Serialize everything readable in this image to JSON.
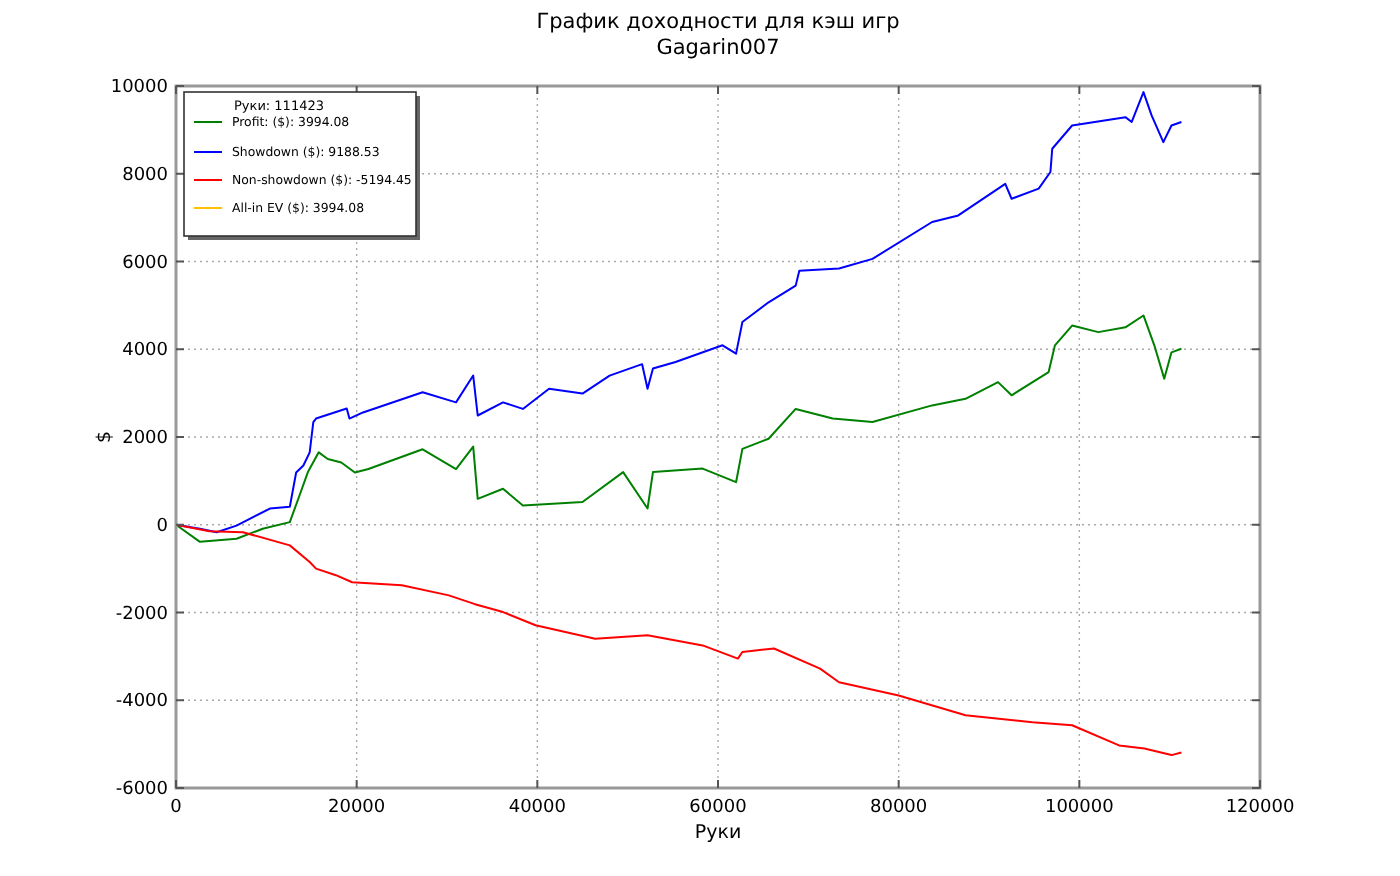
{
  "chart_data": {
    "type": "line",
    "title": "График доходности для кэш игр",
    "subtitle": "Gagarin007",
    "xlabel": "Руки",
    "ylabel": "$",
    "legend_title": "Руки: 111423",
    "xlim": [
      0,
      120000
    ],
    "xticks": [
      0,
      20000,
      40000,
      60000,
      80000,
      100000,
      120000
    ],
    "ylim": [
      -6000,
      10000
    ],
    "yticks": [
      -6000,
      -4000,
      -2000,
      0,
      2000,
      4000,
      6000,
      8000,
      10000
    ],
    "grid": true,
    "legend": "top left",
    "marker": "none",
    "line_style": "solid",
    "series": [
      {
        "name": "Profit: ($): 3994.08",
        "color": "#008000",
        "x": [
          0,
          2650,
          6700,
          9600,
          12600,
          13800,
          14600,
          15800,
          16800,
          18300,
          19800,
          21300,
          27300,
          31000,
          32900,
          33400,
          36200,
          38400,
          45000,
          49500,
          52200,
          52800,
          58300,
          62000,
          62700,
          65600,
          68600,
          72700,
          77100,
          83700,
          87400,
          91000,
          92500,
          96600,
          97300,
          99200,
          102100,
          105100,
          107100,
          108300,
          109400,
          110200,
          111300
        ],
        "values": [
          0,
          -390,
          -320,
          -90,
          60,
          740,
          1200,
          1650,
          1500,
          1420,
          1190,
          1270,
          1720,
          1270,
          1780,
          590,
          820,
          440,
          520,
          1200,
          370,
          1200,
          1280,
          970,
          1730,
          1960,
          2640,
          2420,
          2340,
          2720,
          2870,
          3250,
          2950,
          3480,
          4090,
          4540,
          4390,
          4500,
          4770,
          4090,
          3330,
          3930,
          4010
        ]
      },
      {
        "name": "Showdown ($): 9188.53",
        "color": "#0000ff",
        "x": [
          0,
          2650,
          4500,
          6700,
          10400,
          12600,
          13300,
          14100,
          14800,
          15200,
          15500,
          18900,
          19200,
          20700,
          27300,
          31000,
          32900,
          33400,
          36200,
          38400,
          41300,
          45000,
          48000,
          51600,
          52200,
          52800,
          55300,
          60500,
          62000,
          62700,
          65600,
          68600,
          69000,
          73400,
          77100,
          83700,
          86600,
          91800,
          92500,
          95500,
          96800,
          97000,
          99200,
          105100,
          105800,
          107100,
          108000,
          109300,
          110200,
          111300
        ],
        "values": [
          0,
          -90,
          -170,
          -20,
          370,
          410,
          1190,
          1350,
          1650,
          2340,
          2420,
          2650,
          2420,
          2560,
          3020,
          2790,
          3400,
          2490,
          2790,
          2640,
          3100,
          2990,
          3400,
          3660,
          3100,
          3560,
          3710,
          4090,
          3900,
          4620,
          5070,
          5450,
          5790,
          5840,
          6060,
          6900,
          7050,
          7770,
          7430,
          7660,
          8040,
          8570,
          9100,
          9290,
          9180,
          9860,
          9330,
          8720,
          9100,
          9180
        ]
      },
      {
        "name": "Non-showdown ($): -5194.45",
        "color": "#ff0000",
        "x": [
          0,
          3700,
          7400,
          12600,
          14800,
          15500,
          17700,
          19500,
          25000,
          30200,
          33100,
          36200,
          39800,
          46400,
          52200,
          58300,
          62200,
          62700,
          66200,
          71300,
          73400,
          80000,
          87400,
          94800,
          99200,
          104400,
          107200,
          110200,
          111300
        ],
        "values": [
          0,
          -150,
          -170,
          -470,
          -850,
          -1000,
          -1150,
          -1310,
          -1380,
          -1610,
          -1810,
          -1990,
          -2290,
          -2600,
          -2520,
          -2750,
          -3050,
          -2900,
          -2820,
          -3280,
          -3590,
          -3890,
          -4340,
          -4500,
          -4570,
          -5030,
          -5100,
          -5250,
          -5190
        ]
      },
      {
        "name": "All-in EV ($): 3994.08",
        "color": "#ffc000"
      }
    ]
  }
}
